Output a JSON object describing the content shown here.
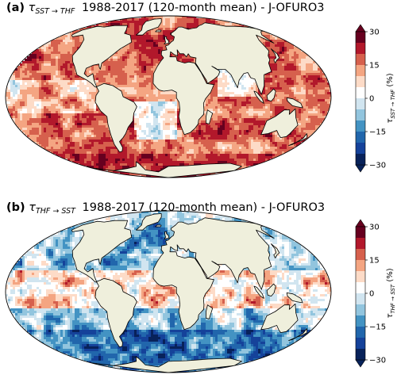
{
  "colors": {
    "land": "#efefdc",
    "outline": "#000000",
    "colormap": [
      "#08225a",
      "#15429a",
      "#2166ac",
      "#4393c3",
      "#92c5de",
      "#d1e5f0",
      "#ffffff",
      "#fddbc7",
      "#f4a582",
      "#d6604d",
      "#b2182b",
      "#67001f"
    ]
  },
  "chart_data": [
    {
      "type": "heatmap",
      "panel_label": "(a)",
      "title_symbol": "τ",
      "title_subscript": "SST → THF",
      "title_rest": "1988-2017 (120-month mean) - J-OFURO3",
      "projection": "Mollweide",
      "colorbar": {
        "label_symbol": "τ",
        "label_subscript": "SST → THF",
        "label_unit": "(%)",
        "ticks": [
          "30",
          "15",
          "0",
          "−15",
          "−30"
        ],
        "range": [
          -30,
          30
        ],
        "extend": "both"
      },
      "dominant_sign": "positive"
    },
    {
      "type": "heatmap",
      "panel_label": "(b)",
      "title_symbol": "τ",
      "title_subscript": "THF → SST",
      "title_rest": "1988-2017 (120-month mean) - J-OFURO3",
      "projection": "Mollweide",
      "colorbar": {
        "label_symbol": "τ",
        "label_subscript": "THF → SST",
        "label_unit": "(%)",
        "ticks": [
          "30",
          "15",
          "0",
          "−15",
          "−30"
        ],
        "range": [
          -30,
          30
        ],
        "extend": "both"
      },
      "dominant_sign": "mixed"
    }
  ]
}
